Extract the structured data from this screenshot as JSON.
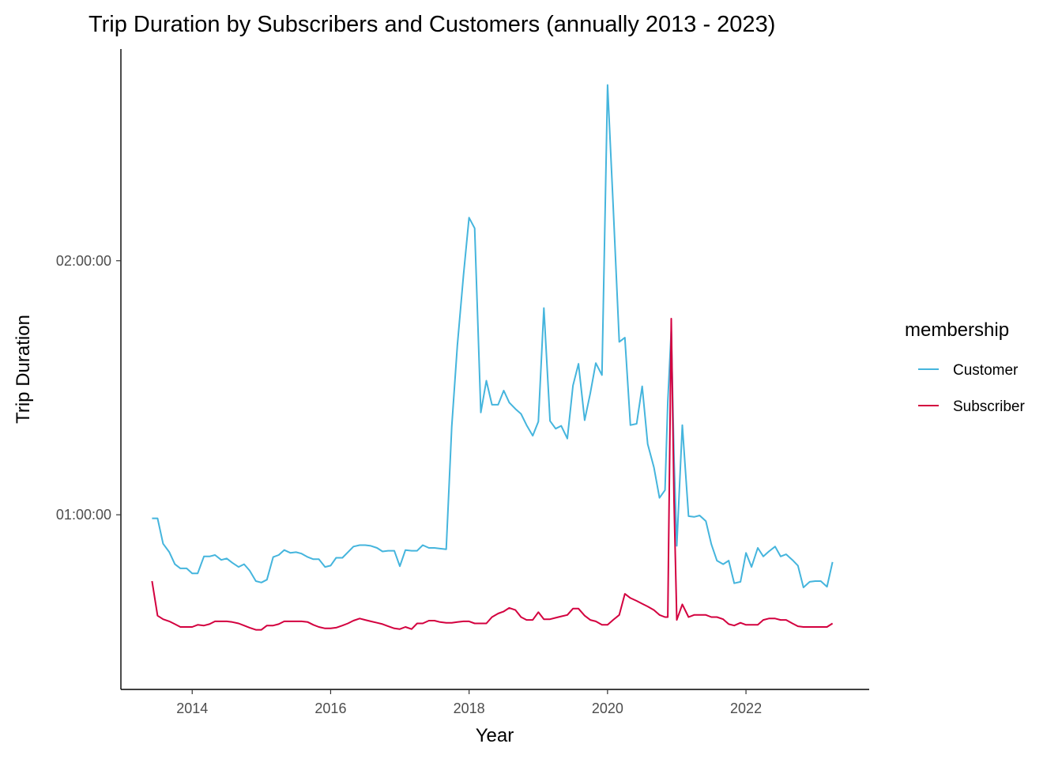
{
  "chart_data": {
    "type": "line",
    "title": "Trip Duration by Subscribers and Customers (annually 2013 - 2023)",
    "xlabel": "Year",
    "ylabel": "Trip Duration",
    "x_ticks": [
      2014,
      2016,
      2018,
      2020,
      2022
    ],
    "y_ticks": [
      {
        "value": 3600,
        "label": "01:00:00"
      },
      {
        "value": 7200,
        "label": "02:00:00"
      }
    ],
    "xlim": [
      2012.97,
      2023.78
    ],
    "ylim": [
      1125,
      10200
    ],
    "y_unit": "seconds",
    "grid": false,
    "legend": {
      "title": "membership",
      "position": "right"
    },
    "series": [
      {
        "name": "Customer",
        "color": "#45b5dd",
        "points": [
          [
            2013.42,
            3550
          ],
          [
            2013.5,
            3550
          ],
          [
            2013.58,
            3190
          ],
          [
            2013.67,
            3070
          ],
          [
            2013.75,
            2900
          ],
          [
            2013.83,
            2840
          ],
          [
            2013.92,
            2840
          ],
          [
            2014.0,
            2770
          ],
          [
            2014.08,
            2770
          ],
          [
            2014.17,
            3010
          ],
          [
            2014.25,
            3010
          ],
          [
            2014.33,
            3030
          ],
          [
            2014.42,
            2960
          ],
          [
            2014.5,
            2980
          ],
          [
            2014.58,
            2920
          ],
          [
            2014.67,
            2860
          ],
          [
            2014.75,
            2900
          ],
          [
            2014.83,
            2810
          ],
          [
            2014.92,
            2660
          ],
          [
            2015.0,
            2640
          ],
          [
            2015.08,
            2680
          ],
          [
            2015.17,
            3000
          ],
          [
            2015.25,
            3030
          ],
          [
            2015.33,
            3100
          ],
          [
            2015.42,
            3060
          ],
          [
            2015.5,
            3070
          ],
          [
            2015.58,
            3050
          ],
          [
            2015.67,
            3000
          ],
          [
            2015.75,
            2970
          ],
          [
            2015.83,
            2970
          ],
          [
            2015.92,
            2860
          ],
          [
            2016.0,
            2880
          ],
          [
            2016.08,
            2990
          ],
          [
            2016.17,
            2990
          ],
          [
            2016.25,
            3070
          ],
          [
            2016.33,
            3150
          ],
          [
            2016.42,
            3170
          ],
          [
            2016.5,
            3170
          ],
          [
            2016.58,
            3160
          ],
          [
            2016.67,
            3130
          ],
          [
            2016.75,
            3080
          ],
          [
            2016.83,
            3090
          ],
          [
            2016.92,
            3090
          ],
          [
            2017.0,
            2870
          ],
          [
            2017.08,
            3100
          ],
          [
            2017.17,
            3090
          ],
          [
            2017.25,
            3090
          ],
          [
            2017.33,
            3170
          ],
          [
            2017.42,
            3130
          ],
          [
            2017.5,
            3130
          ],
          [
            2017.58,
            3120
          ],
          [
            2017.67,
            3110
          ],
          [
            2017.75,
            4850
          ],
          [
            2017.83,
            6000
          ],
          [
            2017.92,
            7000
          ],
          [
            2018.0,
            7810
          ],
          [
            2018.08,
            7660
          ],
          [
            2018.17,
            5050
          ],
          [
            2018.25,
            5500
          ],
          [
            2018.33,
            5160
          ],
          [
            2018.42,
            5160
          ],
          [
            2018.5,
            5360
          ],
          [
            2018.58,
            5190
          ],
          [
            2018.67,
            5100
          ],
          [
            2018.75,
            5030
          ],
          [
            2018.83,
            4870
          ],
          [
            2018.92,
            4720
          ],
          [
            2019.0,
            4920
          ],
          [
            2019.08,
            6530
          ],
          [
            2019.17,
            4930
          ],
          [
            2019.25,
            4820
          ],
          [
            2019.33,
            4860
          ],
          [
            2019.42,
            4680
          ],
          [
            2019.5,
            5430
          ],
          [
            2019.58,
            5740
          ],
          [
            2019.67,
            4940
          ],
          [
            2019.75,
            5320
          ],
          [
            2019.83,
            5750
          ],
          [
            2019.92,
            5580
          ],
          [
            2020.0,
            9690
          ],
          [
            2020.08,
            8000
          ],
          [
            2020.17,
            6050
          ],
          [
            2020.25,
            6110
          ],
          [
            2020.33,
            4870
          ],
          [
            2020.42,
            4890
          ],
          [
            2020.5,
            5420
          ],
          [
            2020.58,
            4600
          ],
          [
            2020.67,
            4270
          ],
          [
            2020.75,
            3840
          ],
          [
            2020.83,
            3950
          ],
          [
            2020.87,
            5200
          ],
          [
            2020.92,
            6210
          ],
          [
            2020.96,
            4400
          ],
          [
            2021.0,
            3160
          ],
          [
            2021.08,
            4870
          ],
          [
            2021.17,
            3580
          ],
          [
            2021.25,
            3570
          ],
          [
            2021.33,
            3590
          ],
          [
            2021.42,
            3510
          ],
          [
            2021.5,
            3180
          ],
          [
            2021.58,
            2950
          ],
          [
            2021.67,
            2900
          ],
          [
            2021.75,
            2950
          ],
          [
            2021.83,
            2630
          ],
          [
            2021.92,
            2650
          ],
          [
            2022.0,
            3060
          ],
          [
            2022.08,
            2860
          ],
          [
            2022.17,
            3130
          ],
          [
            2022.25,
            3010
          ],
          [
            2022.33,
            3080
          ],
          [
            2022.42,
            3150
          ],
          [
            2022.5,
            3010
          ],
          [
            2022.58,
            3040
          ],
          [
            2022.67,
            2960
          ],
          [
            2022.75,
            2880
          ],
          [
            2022.83,
            2570
          ],
          [
            2022.92,
            2650
          ],
          [
            2023.0,
            2660
          ],
          [
            2023.08,
            2660
          ],
          [
            2023.17,
            2580
          ],
          [
            2023.25,
            2930
          ]
        ]
      },
      {
        "name": "Subscriber",
        "color": "#d3003f",
        "points": [
          [
            2013.42,
            2660
          ],
          [
            2013.5,
            2170
          ],
          [
            2013.58,
            2120
          ],
          [
            2013.67,
            2090
          ],
          [
            2013.75,
            2050
          ],
          [
            2013.83,
            2010
          ],
          [
            2013.92,
            2010
          ],
          [
            2014.0,
            2010
          ],
          [
            2014.08,
            2040
          ],
          [
            2014.17,
            2030
          ],
          [
            2014.25,
            2050
          ],
          [
            2014.33,
            2090
          ],
          [
            2014.42,
            2090
          ],
          [
            2014.5,
            2090
          ],
          [
            2014.58,
            2080
          ],
          [
            2014.67,
            2060
          ],
          [
            2014.75,
            2030
          ],
          [
            2014.83,
            2000
          ],
          [
            2014.92,
            1970
          ],
          [
            2015.0,
            1970
          ],
          [
            2015.08,
            2030
          ],
          [
            2015.17,
            2030
          ],
          [
            2015.25,
            2050
          ],
          [
            2015.33,
            2090
          ],
          [
            2015.42,
            2090
          ],
          [
            2015.5,
            2090
          ],
          [
            2015.58,
            2090
          ],
          [
            2015.67,
            2080
          ],
          [
            2015.75,
            2040
          ],
          [
            2015.83,
            2010
          ],
          [
            2015.92,
            1990
          ],
          [
            2016.0,
            1990
          ],
          [
            2016.08,
            2000
          ],
          [
            2016.17,
            2030
          ],
          [
            2016.25,
            2060
          ],
          [
            2016.33,
            2100
          ],
          [
            2016.42,
            2130
          ],
          [
            2016.5,
            2110
          ],
          [
            2016.58,
            2090
          ],
          [
            2016.67,
            2070
          ],
          [
            2016.75,
            2050
          ],
          [
            2016.83,
            2020
          ],
          [
            2016.92,
            1990
          ],
          [
            2017.0,
            1980
          ],
          [
            2017.08,
            2010
          ],
          [
            2017.17,
            1980
          ],
          [
            2017.25,
            2060
          ],
          [
            2017.33,
            2060
          ],
          [
            2017.42,
            2100
          ],
          [
            2017.5,
            2100
          ],
          [
            2017.58,
            2080
          ],
          [
            2017.67,
            2070
          ],
          [
            2017.75,
            2070
          ],
          [
            2017.83,
            2080
          ],
          [
            2017.92,
            2090
          ],
          [
            2018.0,
            2090
          ],
          [
            2018.08,
            2060
          ],
          [
            2018.17,
            2060
          ],
          [
            2018.25,
            2060
          ],
          [
            2018.33,
            2150
          ],
          [
            2018.42,
            2200
          ],
          [
            2018.5,
            2230
          ],
          [
            2018.58,
            2280
          ],
          [
            2018.67,
            2250
          ],
          [
            2018.75,
            2150
          ],
          [
            2018.83,
            2110
          ],
          [
            2018.92,
            2110
          ],
          [
            2019.0,
            2220
          ],
          [
            2019.08,
            2120
          ],
          [
            2019.17,
            2120
          ],
          [
            2019.25,
            2140
          ],
          [
            2019.33,
            2160
          ],
          [
            2019.42,
            2180
          ],
          [
            2019.5,
            2270
          ],
          [
            2019.58,
            2270
          ],
          [
            2019.67,
            2170
          ],
          [
            2019.75,
            2110
          ],
          [
            2019.83,
            2090
          ],
          [
            2019.92,
            2040
          ],
          [
            2020.0,
            2040
          ],
          [
            2020.08,
            2110
          ],
          [
            2020.17,
            2180
          ],
          [
            2020.25,
            2480
          ],
          [
            2020.33,
            2420
          ],
          [
            2020.42,
            2380
          ],
          [
            2020.5,
            2340
          ],
          [
            2020.58,
            2300
          ],
          [
            2020.67,
            2250
          ],
          [
            2020.75,
            2180
          ],
          [
            2020.83,
            2150
          ],
          [
            2020.87,
            2150
          ],
          [
            2020.92,
            6380
          ],
          [
            2020.96,
            3800
          ],
          [
            2021.0,
            2110
          ],
          [
            2021.08,
            2330
          ],
          [
            2021.17,
            2150
          ],
          [
            2021.25,
            2180
          ],
          [
            2021.33,
            2180
          ],
          [
            2021.42,
            2180
          ],
          [
            2021.5,
            2150
          ],
          [
            2021.58,
            2150
          ],
          [
            2021.67,
            2120
          ],
          [
            2021.75,
            2050
          ],
          [
            2021.83,
            2030
          ],
          [
            2021.92,
            2070
          ],
          [
            2022.0,
            2040
          ],
          [
            2022.08,
            2040
          ],
          [
            2022.17,
            2040
          ],
          [
            2022.25,
            2110
          ],
          [
            2022.33,
            2130
          ],
          [
            2022.42,
            2130
          ],
          [
            2022.5,
            2110
          ],
          [
            2022.58,
            2110
          ],
          [
            2022.67,
            2060
          ],
          [
            2022.75,
            2020
          ],
          [
            2022.83,
            2010
          ],
          [
            2022.92,
            2010
          ],
          [
            2023.0,
            2010
          ],
          [
            2023.08,
            2010
          ],
          [
            2023.17,
            2010
          ],
          [
            2023.25,
            2060
          ]
        ]
      }
    ]
  }
}
